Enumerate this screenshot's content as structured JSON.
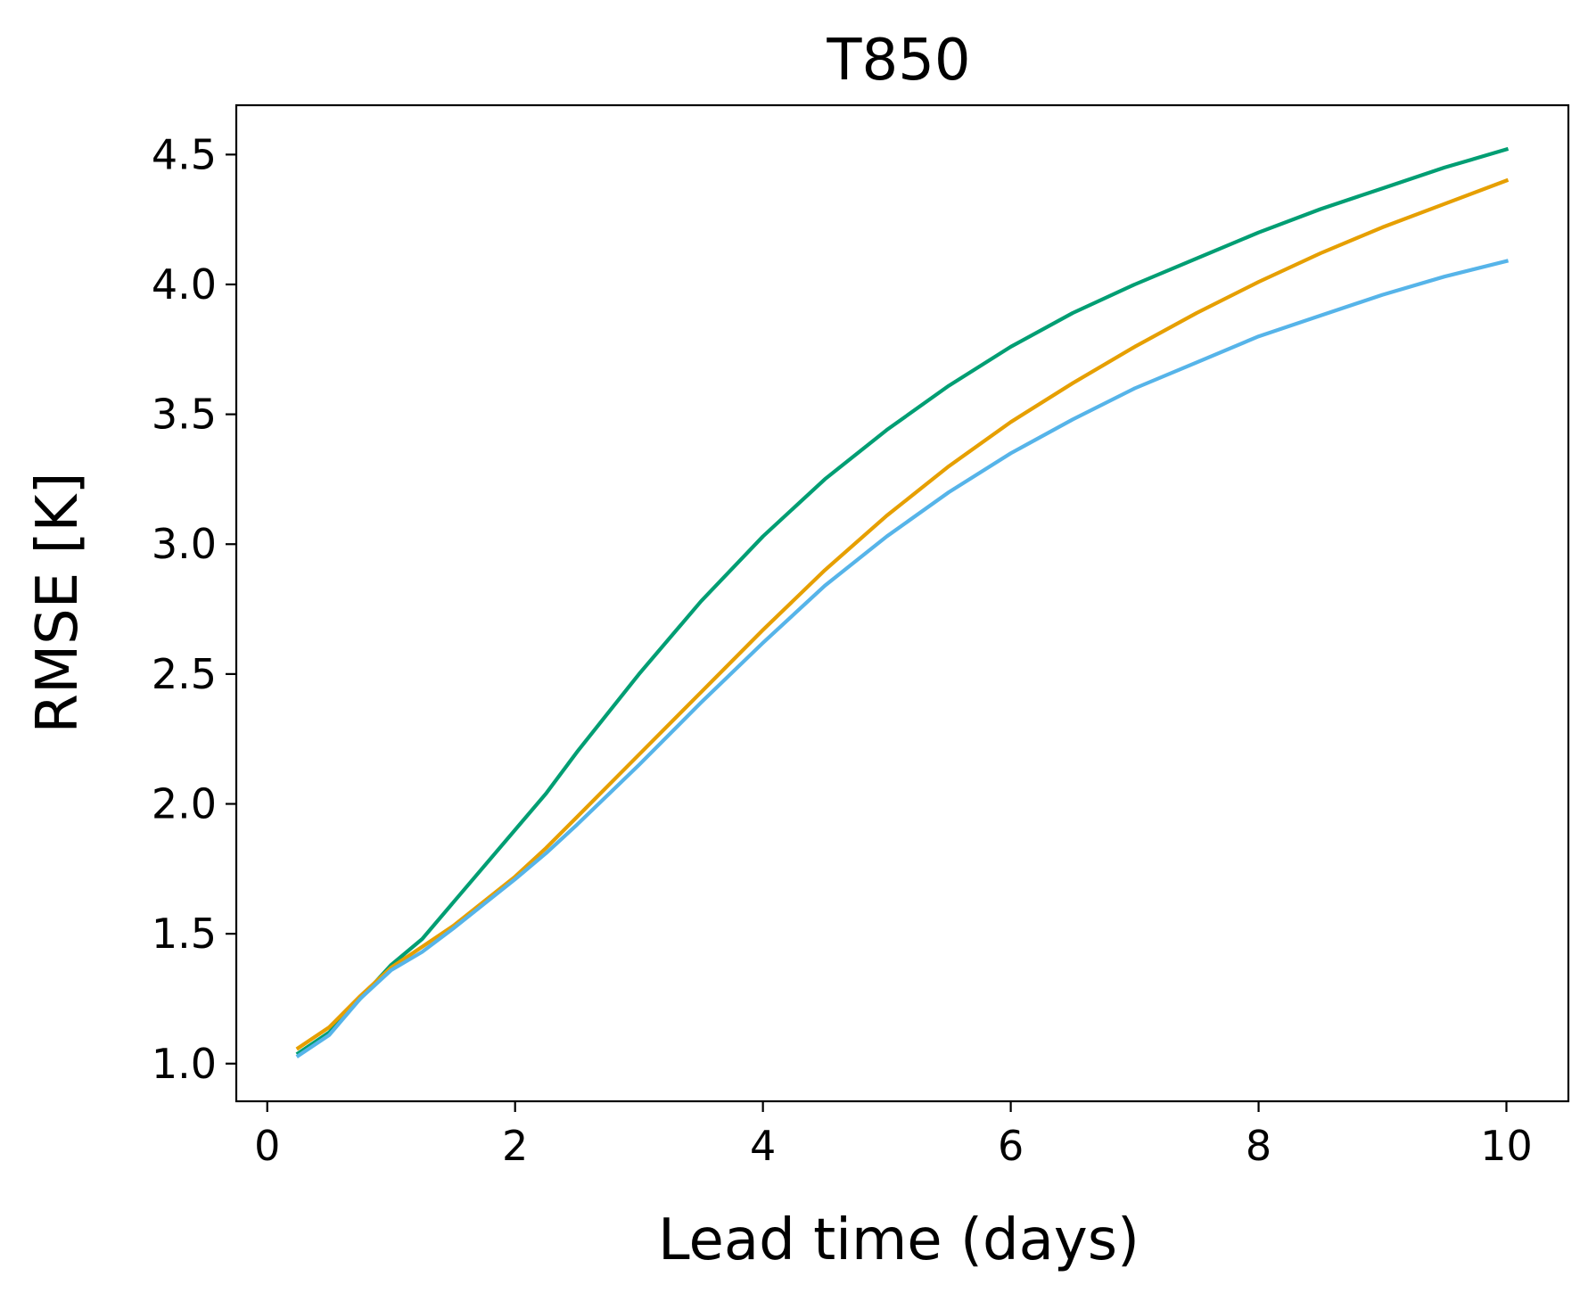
{
  "chart_data": {
    "type": "line",
    "title": "T850",
    "xlabel": "Lead time (days)",
    "ylabel": "RMSE [K]",
    "xlim": [
      -0.25,
      10.5
    ],
    "ylim": [
      0.855,
      4.69
    ],
    "xticks": [
      0,
      2,
      4,
      6,
      8,
      10
    ],
    "yticks": [
      1.0,
      1.5,
      2.0,
      2.5,
      3.0,
      3.5,
      4.0,
      4.5
    ],
    "xtick_labels": [
      "0",
      "2",
      "4",
      "6",
      "8",
      "10"
    ],
    "ytick_labels": [
      "1.0",
      "1.5",
      "2.0",
      "2.5",
      "3.0",
      "3.5",
      "4.0",
      "4.5"
    ],
    "grid": false,
    "x": [
      0.25,
      0.5,
      0.75,
      1.0,
      1.25,
      1.5,
      2.0,
      2.25,
      2.5,
      3.0,
      3.5,
      4.0,
      4.5,
      5.0,
      5.5,
      6.0,
      6.5,
      7.0,
      7.5,
      8.0,
      8.5,
      9.0,
      9.5,
      10.0
    ],
    "series": [
      {
        "color": "#009E73",
        "values": [
          1.04,
          1.12,
          1.25,
          1.38,
          1.48,
          1.62,
          1.9,
          2.04,
          2.2,
          2.5,
          2.78,
          3.03,
          3.25,
          3.44,
          3.61,
          3.76,
          3.89,
          4.0,
          4.1,
          4.2,
          4.29,
          4.37,
          4.45,
          4.52
        ]
      },
      {
        "color": "#E69F00",
        "values": [
          1.06,
          1.14,
          1.26,
          1.37,
          1.45,
          1.53,
          1.72,
          1.83,
          1.95,
          2.19,
          2.43,
          2.67,
          2.9,
          3.11,
          3.3,
          3.47,
          3.62,
          3.76,
          3.89,
          4.01,
          4.12,
          4.22,
          4.31,
          4.4
        ]
      },
      {
        "color": "#56B4E9",
        "values": [
          1.03,
          1.11,
          1.25,
          1.36,
          1.43,
          1.52,
          1.71,
          1.81,
          1.92,
          2.15,
          2.39,
          2.62,
          2.84,
          3.03,
          3.2,
          3.35,
          3.48,
          3.6,
          3.7,
          3.8,
          3.88,
          3.96,
          4.03,
          4.09
        ]
      }
    ]
  }
}
